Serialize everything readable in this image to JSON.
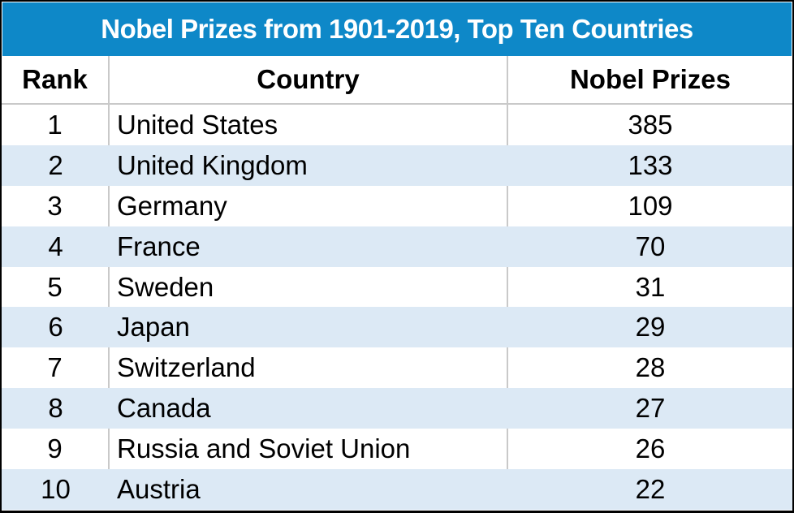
{
  "title": "Nobel Prizes from 1901-2019, Top Ten Countries",
  "columns": {
    "rank": "Rank",
    "country": "Country",
    "prizes": "Nobel Prizes"
  },
  "rows": [
    {
      "rank": "1",
      "country": "United States",
      "prizes": "385"
    },
    {
      "rank": "2",
      "country": "United Kingdom",
      "prizes": "133"
    },
    {
      "rank": "3",
      "country": "Germany",
      "prizes": "109"
    },
    {
      "rank": "4",
      "country": "France",
      "prizes": "70"
    },
    {
      "rank": "5",
      "country": "Sweden",
      "prizes": "31"
    },
    {
      "rank": "6",
      "country": "Japan",
      "prizes": "29"
    },
    {
      "rank": "7",
      "country": "Switzerland",
      "prizes": "28"
    },
    {
      "rank": "8",
      "country": "Canada",
      "prizes": "27"
    },
    {
      "rank": "9",
      "country": "Russia and Soviet Union",
      "prizes": "26"
    },
    {
      "rank": "10",
      "country": "Austria",
      "prizes": "22"
    }
  ],
  "colors": {
    "title_background": "#0e88c8",
    "title_text": "#ffffff",
    "row_default": "#ffffff",
    "row_alternate": "#dce9f5",
    "grid_line": "#c9c9c9",
    "border": "#000000",
    "text": "#000000"
  },
  "chart_data": {
    "type": "table",
    "title": "Nobel Prizes from 1901-2019, Top Ten Countries",
    "columns": [
      "Rank",
      "Country",
      "Nobel Prizes"
    ],
    "categories": [
      "United States",
      "United Kingdom",
      "Germany",
      "France",
      "Sweden",
      "Japan",
      "Switzerland",
      "Canada",
      "Russia and Soviet Union",
      "Austria"
    ],
    "values": [
      385,
      133,
      109,
      70,
      31,
      29,
      28,
      27,
      26,
      22
    ]
  }
}
